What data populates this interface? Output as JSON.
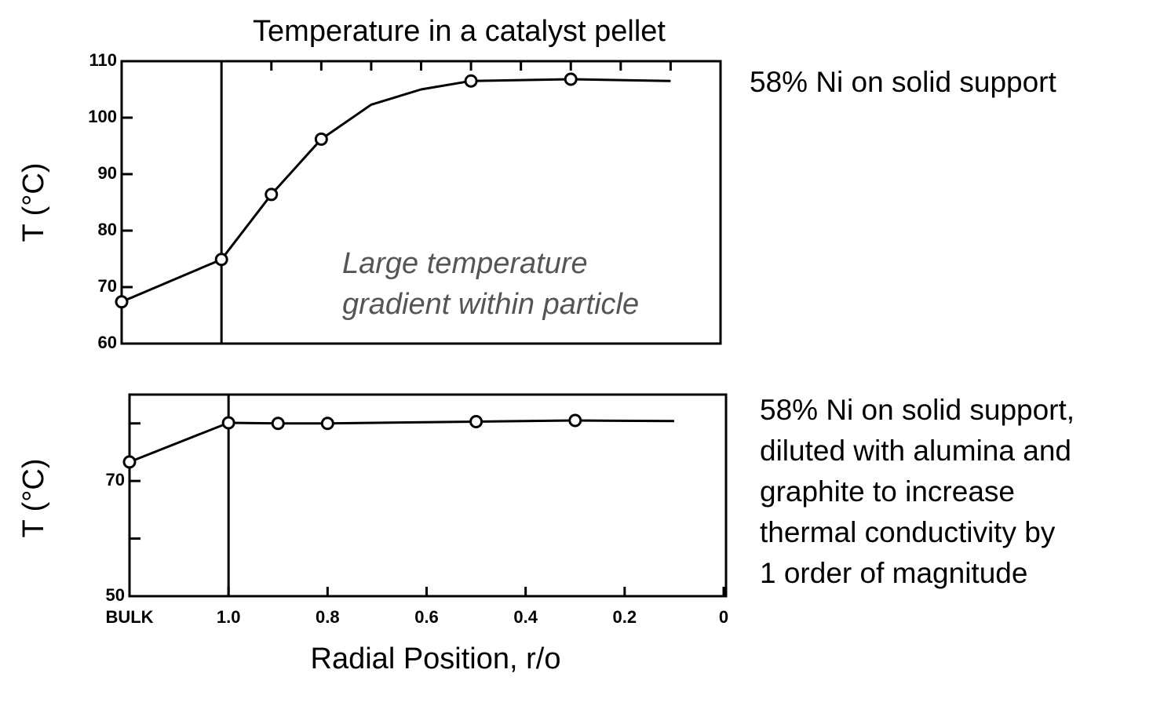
{
  "chart_data": [
    {
      "type": "line",
      "title": "Temperature in a catalyst pellet",
      "ylabel": "T (°C)",
      "note": [
        "58% Ni on solid support"
      ],
      "annotation": [
        "Large temperature",
        "gradient within particle"
      ],
      "xlim": [
        1.2,
        0
      ],
      "ylim": [
        60,
        110
      ],
      "xticks": [
        {
          "value": 0.9,
          "label": null
        },
        {
          "value": 0.8,
          "label": null
        },
        {
          "value": 0.7,
          "label": null
        },
        {
          "value": 0.6,
          "label": null
        },
        {
          "value": 0.5,
          "label": null
        },
        {
          "value": 0.4,
          "label": null
        },
        {
          "value": 0.3,
          "label": null
        },
        {
          "value": 0.2,
          "label": null
        },
        {
          "value": 0.1,
          "label": null
        }
      ],
      "yticks": [
        60,
        70,
        80,
        90,
        100,
        110
      ],
      "vline": 1.0,
      "points": {
        "x": [
          1.2,
          1.0,
          0.9,
          0.8,
          0.5,
          0.3
        ],
        "values": [
          67.4,
          74.9,
          86.4,
          96.2,
          106.5,
          106.8
        ]
      },
      "fit": {
        "x": [
          1.2,
          1.0,
          0.9,
          0.8,
          0.7,
          0.6,
          0.5,
          0.3,
          0.1
        ],
        "values": [
          67.4,
          74.9,
          86.4,
          96.2,
          102.3,
          105,
          106.5,
          106.8,
          106.5
        ]
      },
      "color": "#000"
    },
    {
      "type": "line",
      "ylabel": "T (°C)",
      "xlabel": "Radial Position, r/o",
      "note": [
        "58% Ni on solid support,",
        "diluted with alumina and",
        "graphite to increase",
        "thermal conductivity by",
        "1 order of magnitude"
      ],
      "xlim": [
        1.2,
        0
      ],
      "ylim": [
        50,
        85
      ],
      "xticks": [
        {
          "value": 1.2,
          "label": "BULK"
        },
        {
          "value": 1.0,
          "label": "1.0"
        },
        0.8,
        0.6,
        0.4,
        0.2,
        0
      ],
      "yticks": [
        {
          "value": 50,
          "label": "50"
        },
        {
          "value": 60,
          "label": null
        },
        {
          "value": 70,
          "label": "70"
        },
        {
          "value": 80,
          "label": null
        }
      ],
      "vline": 1.0,
      "points": {
        "x": [
          1.2,
          1.0,
          0.9,
          0.8,
          0.5,
          0.3
        ],
        "values": [
          73.3,
          80.1,
          80,
          80,
          80.3,
          80.5
        ]
      },
      "fit": {
        "x": [
          1.2,
          1.0,
          0.9,
          0.8,
          0.5,
          0.3,
          0.1
        ],
        "values": [
          73.3,
          80.1,
          80,
          80,
          80.3,
          80.5,
          80.4
        ]
      },
      "color": "#000"
    }
  ]
}
